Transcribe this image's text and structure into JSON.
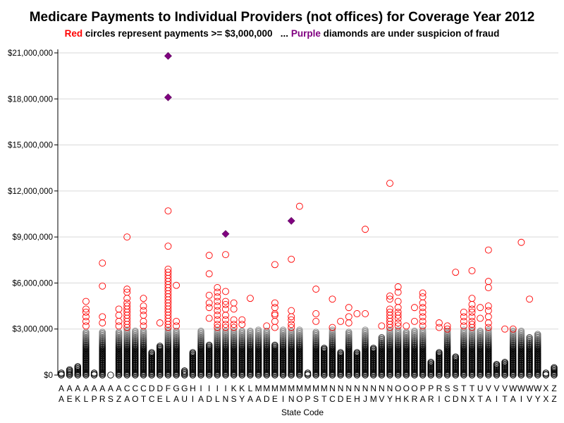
{
  "colors": {
    "over_threshold": "#ff0000",
    "fraud": "#800080",
    "normal": "#000000",
    "grid": "#d9d9d9"
  },
  "chart_data": {
    "type": "scatter",
    "title": "Medicare Payments to Individual Providers (not offices) for Coverage Year 2012",
    "subtitle": {
      "red_word": "Red",
      "red_text": "circles represent payments >= $3,000,000   ...",
      "purple_word": "Purple",
      "purple_text": "diamonds are under suspicion of fraud"
    },
    "xlabel": "State Code",
    "ylabel": "",
    "ylim": [
      0,
      21000000
    ],
    "yticks": [
      0,
      3000000,
      6000000,
      9000000,
      12000000,
      15000000,
      18000000,
      21000000
    ],
    "ytick_labels": [
      "$0",
      "$3,000,000",
      "$6,000,000",
      "$9,000,000",
      "$12,000,000",
      "$15,000,000",
      "$18,000,000",
      "$21,000,000"
    ],
    "grid": true,
    "threshold": 3000000,
    "categories": [
      "AA",
      "AE",
      "AK",
      "AL",
      "AP",
      "AR",
      "AS",
      "AZ",
      "CA",
      "CO",
      "CT",
      "DC",
      "DE",
      "FL",
      "GA",
      "GU",
      "HI",
      "IA",
      "ID",
      "IL",
      "IN",
      "KS",
      "KY",
      "LA",
      "MA",
      "MD",
      "ME",
      "MI",
      "MN",
      "MO",
      "MP",
      "MS",
      "MT",
      "NC",
      "ND",
      "NE",
      "NH",
      "NJ",
      "NM",
      "NV",
      "NY",
      "OH",
      "OK",
      "OR",
      "PA",
      "PR",
      "RI",
      "SC",
      "SD",
      "TN",
      "TX",
      "UT",
      "VA",
      "VI",
      "VT",
      "WA",
      "WI",
      "WV",
      "WY",
      "XX",
      "ZZ"
    ],
    "state_max_normal": [
      150000,
      350000,
      600000,
      2800000,
      200000,
      2800000,
      50000,
      2800000,
      2950000,
      2900000,
      2900000,
      1500000,
      1900000,
      2950000,
      2900000,
      300000,
      1500000,
      2900000,
      2000000,
      2950000,
      2900000,
      2900000,
      2900000,
      2900000,
      2950000,
      2900000,
      2000000,
      2950000,
      2900000,
      2950000,
      150000,
      2800000,
      1800000,
      2950000,
      1500000,
      2800000,
      1500000,
      2950000,
      1800000,
      2500000,
      2950000,
      2950000,
      2800000,
      2900000,
      2950000,
      900000,
      1500000,
      2900000,
      1200000,
      2950000,
      2950000,
      2900000,
      2950000,
      700000,
      900000,
      2900000,
      2900000,
      2500000,
      2700000,
      150000,
      500000
    ],
    "high_payments": [
      [
        "AL",
        4800000
      ],
      [
        "AL",
        4300000
      ],
      [
        "AL",
        4100000
      ],
      [
        "AL",
        3800000
      ],
      [
        "AL",
        3500000
      ],
      [
        "AL",
        3200000
      ],
      [
        "AR",
        7300000
      ],
      [
        "AR",
        5800000
      ],
      [
        "AR",
        3800000
      ],
      [
        "AR",
        3400000
      ],
      [
        "AZ",
        4300000
      ],
      [
        "AZ",
        3900000
      ],
      [
        "AZ",
        3500000
      ],
      [
        "AZ",
        3200000
      ],
      [
        "CA",
        9000000
      ],
      [
        "CA",
        5600000
      ],
      [
        "CA",
        5400000
      ],
      [
        "CA",
        5000000
      ],
      [
        "CA",
        4700000
      ],
      [
        "CA",
        4500000
      ],
      [
        "CA",
        4300000
      ],
      [
        "CA",
        4100000
      ],
      [
        "CA",
        3900000
      ],
      [
        "CA",
        3700000
      ],
      [
        "CA",
        3500000
      ],
      [
        "CA",
        3300000
      ],
      [
        "CA",
        3100000
      ],
      [
        "CT",
        5000000
      ],
      [
        "CT",
        4500000
      ],
      [
        "CT",
        4200000
      ],
      [
        "CT",
        3900000
      ],
      [
        "CT",
        3500000
      ],
      [
        "CT",
        3200000
      ],
      [
        "DE",
        3400000
      ],
      [
        "FL",
        10700000
      ],
      [
        "FL",
        8400000
      ],
      [
        "FL",
        6900000
      ],
      [
        "FL",
        6700000
      ],
      [
        "FL",
        6500000
      ],
      [
        "FL",
        6300000
      ],
      [
        "FL",
        6100000
      ],
      [
        "FL",
        5900000
      ],
      [
        "FL",
        5700000
      ],
      [
        "FL",
        5500000
      ],
      [
        "FL",
        5300000
      ],
      [
        "FL",
        5100000
      ],
      [
        "FL",
        4900000
      ],
      [
        "FL",
        4700000
      ],
      [
        "FL",
        4500000
      ],
      [
        "FL",
        4300000
      ],
      [
        "FL",
        4100000
      ],
      [
        "FL",
        3900000
      ],
      [
        "FL",
        3700000
      ],
      [
        "FL",
        3500000
      ],
      [
        "FL",
        3300000
      ],
      [
        "FL",
        3100000
      ],
      [
        "GA",
        5850000
      ],
      [
        "GA",
        3500000
      ],
      [
        "GA",
        3200000
      ],
      [
        "ID",
        7800000
      ],
      [
        "ID",
        6600000
      ],
      [
        "ID",
        5200000
      ],
      [
        "ID",
        4700000
      ],
      [
        "ID",
        4400000
      ],
      [
        "ID",
        3700000
      ],
      [
        "IL",
        5700000
      ],
      [
        "IL",
        5400000
      ],
      [
        "IL",
        5100000
      ],
      [
        "IL",
        4800000
      ],
      [
        "IL",
        4500000
      ],
      [
        "IL",
        4200000
      ],
      [
        "IL",
        3900000
      ],
      [
        "IL",
        3600000
      ],
      [
        "IL",
        3300000
      ],
      [
        "IL",
        3100000
      ],
      [
        "IN",
        7850000
      ],
      [
        "IN",
        5450000
      ],
      [
        "IN",
        4800000
      ],
      [
        "IN",
        4600000
      ],
      [
        "IN",
        4300000
      ],
      [
        "IN",
        3900000
      ],
      [
        "IN",
        3600000
      ],
      [
        "IN",
        3300000
      ],
      [
        "IN",
        3100000
      ],
      [
        "KS",
        4700000
      ],
      [
        "KS",
        4300000
      ],
      [
        "KS",
        3600000
      ],
      [
        "KS",
        3300000
      ],
      [
        "KS",
        3100000
      ],
      [
        "KY",
        3600000
      ],
      [
        "KY",
        3300000
      ],
      [
        "LA",
        5000000
      ],
      [
        "MD",
        3200000
      ],
      [
        "ME",
        7200000
      ],
      [
        "ME",
        4700000
      ],
      [
        "ME",
        4400000
      ],
      [
        "ME",
        4000000
      ],
      [
        "ME",
        3900000
      ],
      [
        "ME",
        3500000
      ],
      [
        "ME",
        3100000
      ],
      [
        "MN",
        7550000
      ],
      [
        "MN",
        4200000
      ],
      [
        "MN",
        3800000
      ],
      [
        "MN",
        3600000
      ],
      [
        "MN",
        3300000
      ],
      [
        "MN",
        3100000
      ],
      [
        "MO",
        11000000
      ],
      [
        "MS",
        5600000
      ],
      [
        "MS",
        4000000
      ],
      [
        "MS",
        3500000
      ],
      [
        "NC",
        4950000
      ],
      [
        "NC",
        3100000
      ],
      [
        "ND",
        3500000
      ],
      [
        "NE",
        4400000
      ],
      [
        "NE",
        3800000
      ],
      [
        "NE",
        3400000
      ],
      [
        "NH",
        4000000
      ],
      [
        "NJ",
        9500000
      ],
      [
        "NJ",
        4000000
      ],
      [
        "NV",
        3200000
      ],
      [
        "NY",
        12500000
      ],
      [
        "NY",
        5150000
      ],
      [
        "NY",
        4950000
      ],
      [
        "NY",
        4300000
      ],
      [
        "NY",
        4100000
      ],
      [
        "NY",
        3900000
      ],
      [
        "NY",
        3700000
      ],
      [
        "NY",
        3500000
      ],
      [
        "NY",
        3300000
      ],
      [
        "NY",
        3100000
      ],
      [
        "OH",
        5750000
      ],
      [
        "OH",
        5400000
      ],
      [
        "OH",
        4800000
      ],
      [
        "OH",
        4400000
      ],
      [
        "OH",
        4100000
      ],
      [
        "OH",
        3900000
      ],
      [
        "OH",
        3700000
      ],
      [
        "OH",
        3400000
      ],
      [
        "OH",
        3200000
      ],
      [
        "OK",
        3200000
      ],
      [
        "OR",
        4400000
      ],
      [
        "OR",
        3500000
      ],
      [
        "PA",
        5350000
      ],
      [
        "PA",
        5100000
      ],
      [
        "PA",
        4700000
      ],
      [
        "PA",
        4400000
      ],
      [
        "PA",
        4100000
      ],
      [
        "PA",
        3800000
      ],
      [
        "PA",
        3500000
      ],
      [
        "PA",
        3200000
      ],
      [
        "RI",
        3400000
      ],
      [
        "RI",
        3100000
      ],
      [
        "SC",
        3200000
      ],
      [
        "SC",
        3000000
      ],
      [
        "SD",
        6700000
      ],
      [
        "TN",
        4100000
      ],
      [
        "TN",
        3800000
      ],
      [
        "TN",
        3500000
      ],
      [
        "TN",
        3200000
      ],
      [
        "TX",
        6800000
      ],
      [
        "TX",
        5000000
      ],
      [
        "TX",
        4600000
      ],
      [
        "TX",
        4300000
      ],
      [
        "TX",
        4100000
      ],
      [
        "TX",
        3800000
      ],
      [
        "TX",
        3500000
      ],
      [
        "TX",
        3300000
      ],
      [
        "TX",
        3100000
      ],
      [
        "UT",
        4400000
      ],
      [
        "UT",
        3700000
      ],
      [
        "VA",
        8150000
      ],
      [
        "VA",
        6100000
      ],
      [
        "VA",
        5700000
      ],
      [
        "VA",
        4500000
      ],
      [
        "VA",
        4200000
      ],
      [
        "VA",
        3800000
      ],
      [
        "VA",
        3400000
      ],
      [
        "VA",
        3100000
      ],
      [
        "VT",
        3000000
      ],
      [
        "WA",
        3000000
      ],
      [
        "WI",
        8650000
      ],
      [
        "WV",
        4950000
      ]
    ],
    "fraud_suspects": [
      [
        "FL",
        20800000
      ],
      [
        "FL",
        18100000
      ],
      [
        "IN",
        9200000
      ],
      [
        "MN",
        10050000
      ]
    ]
  }
}
